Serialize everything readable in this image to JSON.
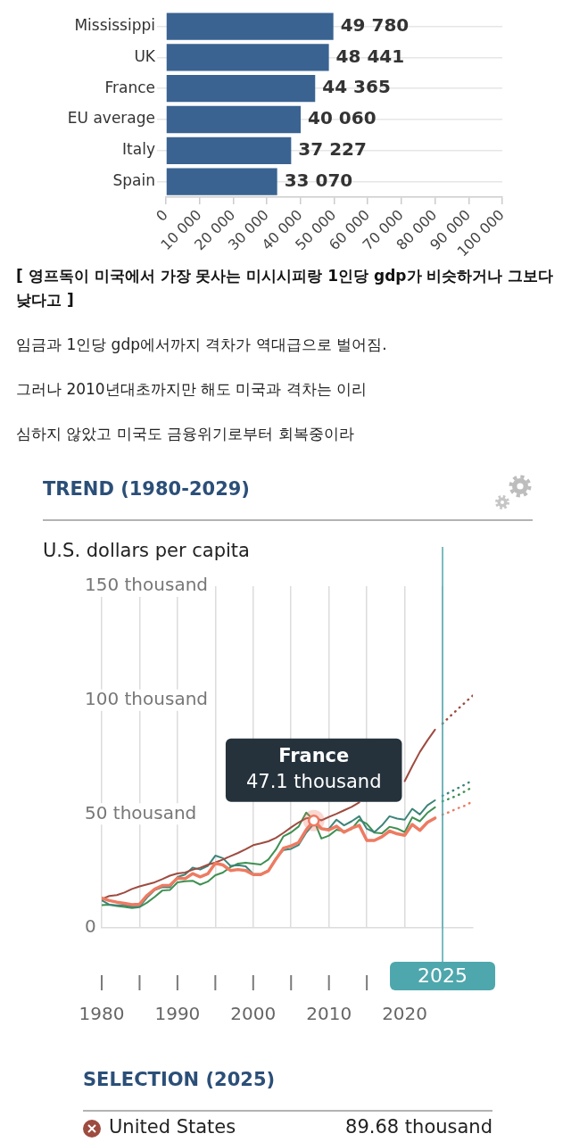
{
  "chart_data": [
    {
      "type": "bar",
      "orientation": "horizontal",
      "categories": [
        "Mississippi",
        "UK",
        "France",
        "EU average",
        "Italy",
        "Spain"
      ],
      "values": [
        49780,
        48441,
        44365,
        40060,
        37227,
        33070
      ],
      "color": "#3a6391",
      "value_labels": [
        "49 780",
        "48 441",
        "44 365",
        "40 060",
        "37 227",
        "33 070"
      ],
      "xlim": [
        0,
        100000
      ],
      "xticks": [
        0,
        {
          "value": 10000,
          "label": "10 000"
        },
        {
          "value": 20000,
          "label": "20 000"
        },
        {
          "value": 30000,
          "label": "30 000"
        },
        {
          "value": 40000,
          "label": "40 000"
        },
        {
          "value": 50000,
          "label": "50 000"
        },
        {
          "value": 60000,
          "label": "60 000"
        },
        {
          "value": 70000,
          "label": "70 000"
        },
        {
          "value": 80000,
          "label": "80 000"
        },
        {
          "value": 90000,
          "label": "90 000"
        },
        {
          "value": 100000,
          "label": "100 000"
        }
      ],
      "grid": "y",
      "annotations": [
        "[ 영프독이 미국에서 가장 못사는 미시시피랑 1인당 gdp가 비슷하거나 그보다 낮다고 ]",
        "임금과 1인당 gdp에서까지 격차가 역대급으로 벌어짐.",
        "그러나 2010년대초까지만 해도 미국과 격차는 이리",
        "심하지 않았고 미국도 금융위기로부터 회복중이라"
      ]
    },
    {
      "type": "line",
      "title": "TREND (1980-2029)",
      "ylabel": "U.S. dollars per capita",
      "x": [
        1980,
        1981,
        1982,
        1983,
        1984,
        1985,
        1986,
        1987,
        1988,
        1989,
        1990,
        1991,
        1992,
        1993,
        1994,
        1995,
        1996,
        1997,
        1998,
        1999,
        2000,
        2001,
        2002,
        2003,
        2004,
        2005,
        2006,
        2007,
        2008,
        2009,
        2010,
        2011,
        2012,
        2013,
        2014,
        2015,
        2016,
        2017,
        2018,
        2019,
        2020,
        2021,
        2022,
        2023,
        2024
      ],
      "series": [
        {
          "name": "United States",
          "color": "#9e4b40",
          "values": [
            12.6,
            14.0,
            14.4,
            15.5,
            17.1,
            18.2,
            19.1,
            20.0,
            21.4,
            22.9,
            23.9,
            24.3,
            25.5,
            26.4,
            27.7,
            28.7,
            30.0,
            31.5,
            32.9,
            34.5,
            36.3,
            37.1,
            38.0,
            39.5,
            41.7,
            44.1,
            46.3,
            48.1,
            48.5,
            47.2,
            48.7,
            50.1,
            51.6,
            53.1,
            55.1,
            null,
            null,
            null,
            null,
            null,
            64.4,
            71.0,
            77.2,
            82.3,
            87.0
          ]
        },
        {
          "color": "#ed7b62",
          "values": [
            13.1,
            12.0,
            11.3,
            10.8,
            10.2,
            10.4,
            14.3,
            17.0,
            18.6,
            18.7,
            21.8,
            21.6,
            23.8,
            22.4,
            23.7,
            28.4,
            27.6,
            25.2,
            25.6,
            25.2,
            23.4,
            23.4,
            25.0,
            30.2,
            35.0,
            36.0,
            37.5,
            43.0,
            47.1,
            43.6,
            43.0,
            44.6,
            42.0,
            43.8,
            45.0,
            38.4,
            38.4,
            40.0,
            42.5,
            41.3,
            40.6,
            45.4,
            42.8,
            46.3,
            48.2
          ]
        },
        {
          "color": "#3d8479",
          "values": [
            12.1,
            10.2,
            9.9,
            9.9,
            9.3,
            9.4,
            13.4,
            16.6,
            17.9,
            17.8,
            22.3,
            23.4,
            26.4,
            25.6,
            27.2,
            31.7,
            30.6,
            27.2,
            27.5,
            27.0,
            23.7,
            23.6,
            25.2,
            30.4,
            34.2,
            34.7,
            36.4,
            41.8,
            45.7,
            43.5,
            43.5,
            47.5,
            45.0,
            46.8,
            49.0,
            43.5,
            42.0,
            45.0,
            49.0,
            48.0,
            47.5,
            52.3,
            49.8,
            53.8,
            56.0
          ]
        },
        {
          "color": "#3f9052",
          "values": [
            10.0,
            10.2,
            9.6,
            9.2,
            8.7,
            9.1,
            11.1,
            13.6,
            16.4,
            16.6,
            20.0,
            20.5,
            20.7,
            19.0,
            20.3,
            23.1,
            24.3,
            26.7,
            28.2,
            28.6,
            28.2,
            27.8,
            30.0,
            34.4,
            40.2,
            41.9,
            44.5,
            50.6,
            47.3,
            39.2,
            40.5,
            43.1,
            42.4,
            43.4,
            47.4,
            45.7,
            41.8,
            41.5,
            44.4,
            43.6,
            42.0,
            48.5,
            46.8,
            50.5,
            52.9
          ]
        },
        {
          "color": "#9e4b40",
          "line_style": "dotted",
          "x": [
            2025,
            2026,
            2027,
            2028,
            2029
          ],
          "values": [
            89.68,
            92.9,
            96.0,
            99.0,
            102.0
          ]
        },
        {
          "color": "#ed7b62",
          "line_style": "dotted",
          "x": [
            2025,
            2026,
            2027,
            2028,
            2029
          ],
          "values": [
            49.7,
            51.0,
            52.5,
            53.7,
            55.6
          ]
        },
        {
          "color": "#3d8479",
          "line_style": "dotted",
          "x": [
            2025,
            2026,
            2027,
            2028,
            2029
          ],
          "values": [
            58.0,
            59.6,
            61.3,
            63.0,
            64.8
          ]
        },
        {
          "color": "#3f9052",
          "line_style": "dotted",
          "x": [
            2025,
            2026,
            2027,
            2028,
            2029
          ],
          "values": [
            55.6,
            56.8,
            58.2,
            60.0,
            61.9
          ]
        }
      ],
      "xlim": [
        1980,
        2029
      ],
      "xticks": [
        1980,
        {
          "value": 1985,
          "label": null
        },
        1990,
        {
          "value": 1995,
          "label": null
        },
        2000,
        {
          "value": 2005,
          "label": null
        },
        2010,
        {
          "value": 2015,
          "label": null
        },
        2020,
        {
          "value": 2025,
          "label": null
        }
      ],
      "ylim": [
        0,
        150
      ],
      "yticks": [
        0,
        {
          "value": 50,
          "label": "50 thousand"
        },
        {
          "value": 100,
          "label": "100 thousand"
        },
        {
          "value": 150,
          "label": "150 thousand"
        }
      ],
      "grid": "x",
      "ref_lines": [
        {
          "axis": "x",
          "value": 2025,
          "label": "2025",
          "color": "#4ea7ac"
        }
      ],
      "legend": "bottom",
      "legend_title": "SELECTION (2025)",
      "annotations": [
        {
          "text": "France",
          "x": 2008,
          "y": 47.1
        },
        {
          "text": "47.1 thousand",
          "x": 2008,
          "y": 47.1
        },
        "89.68 thousand"
      ]
    }
  ]
}
